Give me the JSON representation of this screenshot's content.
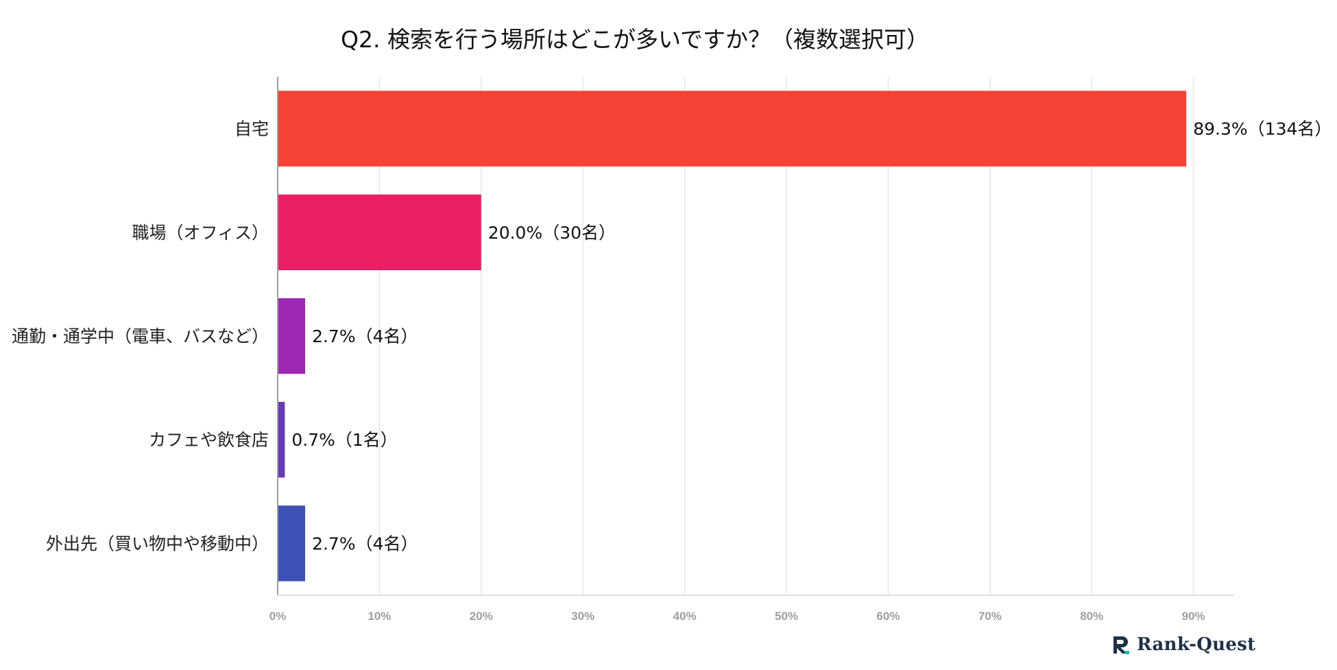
{
  "chart_data": {
    "type": "bar",
    "orientation": "horizontal",
    "title": "Q2. 検索を行う場所はどこが多いですか？（複数選択可）",
    "categories": [
      "自宅",
      "職場（オフィス）",
      "通勤・通学中（電車、バスなど）",
      "カフェや飲食店",
      "外出先（買い物中や移動中）"
    ],
    "values": [
      89.3,
      20.0,
      2.7,
      0.7,
      2.7
    ],
    "value_labels": [
      "89.3%（134名）",
      "20.0%（30名）",
      "2.7%（4名）",
      "0.7%（1名）",
      "2.7%（4名）"
    ],
    "colors": [
      "#f44336",
      "#e91e63",
      "#9c27b0",
      "#673ab7",
      "#3f51b5"
    ],
    "x_ticks": [
      "0%",
      "10%",
      "20%",
      "30%",
      "40%",
      "50%",
      "60%",
      "70%",
      "80%",
      "90%"
    ],
    "xlim": [
      0,
      94
    ],
    "grid": true,
    "legend": "none"
  },
  "branding": {
    "logo_text": "Rank-Quest"
  }
}
